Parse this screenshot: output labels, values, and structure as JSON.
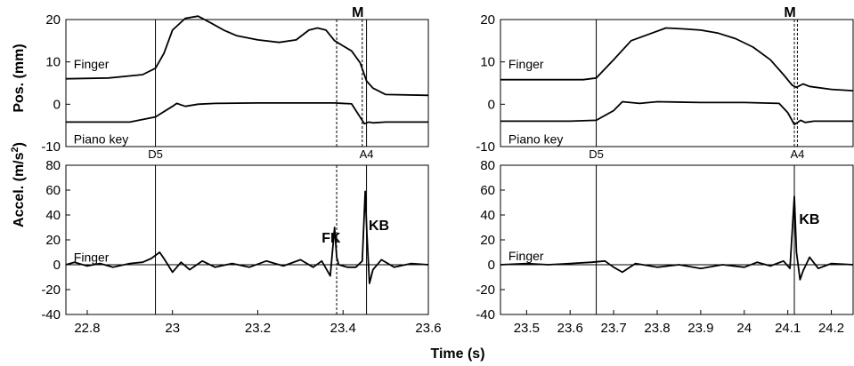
{
  "figure": {
    "xlabel": "Time (s)",
    "ylabel_top": "Pos. (mm)",
    "ylabel_bottom_prefix": "Accel. (m/s",
    "ylabel_bottom_sup": "2",
    "ylabel_bottom_suffix": ")"
  },
  "chart_data": [
    {
      "type": "line",
      "panel": "left-top",
      "ylim": [
        -10,
        20
      ],
      "yticks": [
        -10,
        0,
        10,
        20
      ],
      "xlim": [
        22.75,
        23.6
      ],
      "grid": false,
      "series_labels": [
        {
          "name": "Finger",
          "x": 22.76,
          "y": 9.5
        },
        {
          "name": "Piano key",
          "x": 22.76,
          "y": -8.2
        }
      ],
      "series": [
        {
          "name": "Finger",
          "x": [
            22.75,
            22.85,
            22.93,
            22.96,
            22.98,
            23.0,
            23.03,
            23.06,
            23.09,
            23.12,
            23.15,
            23.2,
            23.25,
            23.29,
            23.32,
            23.34,
            23.36,
            23.38,
            23.4,
            23.42,
            23.44,
            23.455,
            23.47,
            23.5,
            23.6
          ],
          "values": [
            6,
            6.2,
            7,
            8.5,
            12,
            17.5,
            20.3,
            20.8,
            19.2,
            17.5,
            16.2,
            15.2,
            14.6,
            15.2,
            17.5,
            18,
            17.5,
            15,
            13.8,
            12.6,
            9.8,
            5.5,
            3.8,
            2.3,
            2.1
          ]
        },
        {
          "name": "Piano key",
          "x": [
            22.75,
            22.9,
            22.96,
            23.0,
            23.01,
            23.03,
            23.06,
            23.1,
            23.2,
            23.3,
            23.38,
            23.42,
            23.45,
            23.46,
            23.47,
            23.5,
            23.6
          ],
          "values": [
            -4.2,
            -4.2,
            -3,
            -0.5,
            0.2,
            -0.5,
            0,
            0.2,
            0.3,
            0.3,
            0.3,
            0.1,
            -4.6,
            -4.2,
            -4.4,
            -4.2,
            -4.2
          ]
        }
      ],
      "markers": [
        {
          "x": 22.96,
          "label": "D5",
          "style": "solid"
        },
        {
          "x": 23.385,
          "label": "",
          "style": "dashed"
        },
        {
          "x": 23.445,
          "label": "M",
          "style": "dashed"
        },
        {
          "x": 23.455,
          "label": "A4",
          "style": "solid"
        }
      ]
    },
    {
      "type": "line",
      "panel": "left-bottom",
      "ylim": [
        -40,
        80
      ],
      "yticks": [
        -40,
        -20,
        0,
        20,
        40,
        60,
        80
      ],
      "xlim": [
        22.75,
        23.6
      ],
      "xticks": [
        22.8,
        23,
        23.2,
        23.4,
        23.6
      ],
      "xticklabels": [
        "22.8",
        "23",
        "23.2",
        "23.4",
        "23.6"
      ],
      "grid": false,
      "series_labels": [
        {
          "name": "Finger",
          "x": 22.76,
          "y": 6
        }
      ],
      "annotations": [
        {
          "text": "FK",
          "x": 23.35,
          "y": 18
        },
        {
          "text": "KB",
          "x": 23.46,
          "y": 28
        }
      ],
      "series": [
        {
          "name": "Finger",
          "x": [
            22.75,
            22.77,
            22.8,
            22.83,
            22.86,
            22.9,
            22.93,
            22.95,
            22.97,
            22.98,
            23.0,
            23.02,
            23.04,
            23.07,
            23.1,
            23.14,
            23.18,
            23.22,
            23.26,
            23.3,
            23.33,
            23.35,
            23.37,
            23.38,
            23.385,
            23.39,
            23.41,
            23.43,
            23.445,
            23.452,
            23.456,
            23.462,
            23.47,
            23.49,
            23.52,
            23.56,
            23.6
          ],
          "values": [
            0,
            2,
            -1,
            1,
            -2,
            1,
            2,
            5,
            10,
            5,
            -6,
            2,
            -4,
            3,
            -2,
            1,
            -2,
            3,
            -1,
            4,
            -2,
            3,
            -9,
            30,
            6,
            0,
            -2,
            -2,
            3,
            59,
            25,
            -15,
            -4,
            4,
            -2,
            1,
            0
          ]
        }
      ],
      "hline": 0,
      "markers": [
        {
          "x": 22.96,
          "label": "",
          "style": "solid"
        },
        {
          "x": 23.385,
          "label": "",
          "style": "dashed"
        },
        {
          "x": 23.455,
          "label": "",
          "style": "solid"
        }
      ]
    },
    {
      "type": "line",
      "panel": "right-top",
      "ylim": [
        -10,
        20
      ],
      "yticks": [
        -10,
        0,
        10,
        20
      ],
      "xlim": [
        23.44,
        24.25
      ],
      "grid": false,
      "series_labels": [
        {
          "name": "Finger",
          "x": 23.45,
          "y": 9.5
        },
        {
          "name": "Piano key",
          "x": 23.45,
          "y": -8.2
        }
      ],
      "series": [
        {
          "name": "Finger",
          "x": [
            23.44,
            23.55,
            23.63,
            23.66,
            23.7,
            23.74,
            23.78,
            23.82,
            23.86,
            23.9,
            23.94,
            23.98,
            24.02,
            24.06,
            24.09,
            24.11,
            24.12,
            24.135,
            24.15,
            24.2,
            24.25
          ],
          "values": [
            5.8,
            5.8,
            5.8,
            6.2,
            10.5,
            15,
            16.5,
            18,
            17.8,
            17.5,
            16.8,
            15.5,
            13.5,
            10.5,
            7,
            4.5,
            4,
            4.8,
            4.2,
            3.5,
            3.2
          ]
        },
        {
          "name": "Piano key",
          "x": [
            23.44,
            23.6,
            23.66,
            23.7,
            23.72,
            23.73,
            23.76,
            23.8,
            23.9,
            24.0,
            24.08,
            24.1,
            24.115,
            24.13,
            24.14,
            24.16,
            24.25
          ],
          "values": [
            -4,
            -4,
            -3.8,
            -1.5,
            0.6,
            0.5,
            0.2,
            0.6,
            0.4,
            0.4,
            0.2,
            -2,
            -4.8,
            -3.8,
            -4.3,
            -4,
            -4
          ]
        }
      ],
      "markers": [
        {
          "x": 23.66,
          "label": "D5",
          "style": "solid"
        },
        {
          "x": 24.115,
          "label": "M",
          "style": "dashed"
        },
        {
          "x": 24.122,
          "label": "A4",
          "style": "dashed"
        }
      ]
    },
    {
      "type": "line",
      "panel": "right-bottom",
      "ylim": [
        -40,
        80
      ],
      "yticks": [
        -40,
        -20,
        0,
        20,
        40,
        60,
        80
      ],
      "xlim": [
        23.44,
        24.25
      ],
      "xticks": [
        23.5,
        23.6,
        23.7,
        23.8,
        23.9,
        24,
        24.1,
        24.2
      ],
      "xticklabels": [
        "23.5",
        "23.6",
        "23.7",
        "23.8",
        "23.9",
        "24",
        "24.1",
        "24.2"
      ],
      "grid": false,
      "series_labels": [
        {
          "name": "Finger",
          "x": 23.45,
          "y": 7
        }
      ],
      "annotations": [
        {
          "text": "KB",
          "x": 24.126,
          "y": 33
        }
      ],
      "series": [
        {
          "name": "Finger",
          "x": [
            23.44,
            23.5,
            23.55,
            23.6,
            23.65,
            23.68,
            23.7,
            23.72,
            23.75,
            23.8,
            23.85,
            23.9,
            23.95,
            24.0,
            24.03,
            24.06,
            24.09,
            24.105,
            24.115,
            24.12,
            24.128,
            24.135,
            24.15,
            24.17,
            24.2,
            24.25
          ],
          "values": [
            0,
            1,
            0,
            1,
            2,
            3,
            -2,
            -6,
            1,
            -2,
            0,
            -3,
            0,
            -2,
            2,
            -1,
            3,
            -3,
            55,
            10,
            -12,
            -5,
            6,
            -3,
            1,
            0
          ]
        }
      ],
      "hline": 0,
      "markers": [
        {
          "x": 23.66,
          "label": "",
          "style": "solid"
        },
        {
          "x": 24.115,
          "label": "",
          "style": "solid"
        }
      ]
    }
  ]
}
